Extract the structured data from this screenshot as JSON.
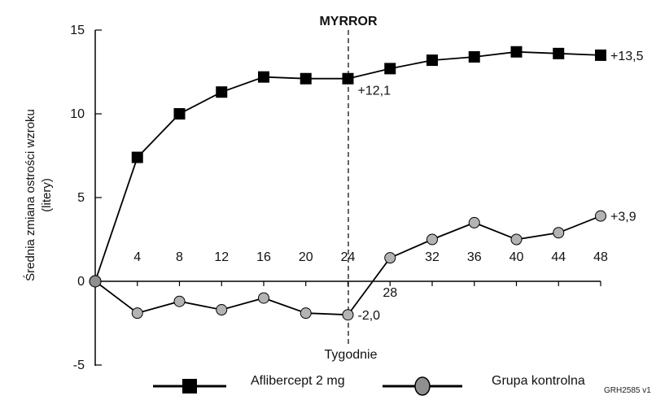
{
  "chart_data": {
    "type": "line",
    "title": "MYRROR",
    "xlabel": "Tygodnie",
    "ylabel_line1": "Średnia zmiana ostrości wzroku",
    "ylabel_line2": "(litery)",
    "yticks": [
      "15",
      "10",
      "5",
      "0",
      "-5"
    ],
    "ytick_values": [
      15,
      10,
      5,
      0,
      -5
    ],
    "xticks": [
      {
        "label": "4",
        "value": 4,
        "pos": "above"
      },
      {
        "label": "8",
        "value": 8,
        "pos": "above"
      },
      {
        "label": "12",
        "value": 12,
        "pos": "above"
      },
      {
        "label": "16",
        "value": 16,
        "pos": "above"
      },
      {
        "label": "20",
        "value": 20,
        "pos": "above"
      },
      {
        "label": "24",
        "value": 24,
        "pos": "above"
      },
      {
        "label": "28",
        "value": 28,
        "pos": "below"
      },
      {
        "label": "32",
        "value": 32,
        "pos": "above"
      },
      {
        "label": "36",
        "value": 36,
        "pos": "above"
      },
      {
        "label": "40",
        "value": 40,
        "pos": "above"
      },
      {
        "label": "44",
        "value": 44,
        "pos": "above"
      },
      {
        "label": "48",
        "value": 48,
        "pos": "above"
      }
    ],
    "xlim": [
      0,
      48
    ],
    "ylim": [
      -5.5,
      15
    ],
    "vline_x": 24,
    "series": [
      {
        "name": "Aflibercept 2 mg",
        "marker": "square",
        "color": "#000000",
        "x": [
          0,
          4,
          8,
          12,
          16,
          20,
          24,
          28,
          32,
          36,
          40,
          44,
          48
        ],
        "y": [
          0,
          7.4,
          10.0,
          11.3,
          12.2,
          12.1,
          12.1,
          12.7,
          13.2,
          13.4,
          13.7,
          13.6,
          13.5
        ]
      },
      {
        "name": "Grupa kontrolna",
        "marker": "circle",
        "color": "#b3b3b3",
        "x": [
          0,
          4,
          8,
          12,
          16,
          20,
          24,
          28,
          32,
          36,
          40,
          44,
          48
        ],
        "y": [
          0,
          -1.9,
          -1.2,
          -1.7,
          -1.0,
          -1.9,
          -2.0,
          1.4,
          2.5,
          3.5,
          2.5,
          2.9,
          3.9
        ]
      }
    ],
    "annotations": [
      {
        "text": "+12,1",
        "x": 24,
        "y": 12.1
      },
      {
        "text": "+13,5",
        "x": 48,
        "y": 13.5
      },
      {
        "text": "-2,0",
        "x": 24,
        "y": -2.0
      },
      {
        "text": "+3,9",
        "x": 48,
        "y": 3.9
      }
    ],
    "legend_placement": "bottom",
    "grid": false
  },
  "footer_code": "GRH2585 v1"
}
